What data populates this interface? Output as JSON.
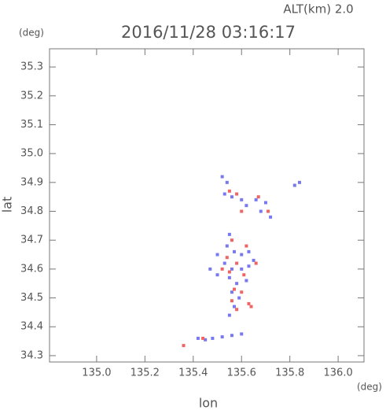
{
  "chart_data": {
    "type": "scatter",
    "title": "2016/11/28 03:16:17",
    "subtitle": "ALT(km) 2.0",
    "x_label": "lon",
    "y_label": "lat",
    "x_unit": "(deg)",
    "y_unit": "(deg)",
    "xlim": [
      134.805,
      136.107
    ],
    "ylim": [
      34.278,
      35.363
    ],
    "xticks": [
      {
        "value": 135,
        "label": "135.0"
      },
      135.2,
      135.4,
      135.6,
      135.8,
      {
        "value": 136,
        "label": "136.0"
      }
    ],
    "yticks": [
      34.3,
      34.4,
      34.5,
      34.6,
      34.7,
      34.8,
      34.9,
      {
        "value": 35,
        "label": "35.0"
      },
      35.1,
      35.2,
      35.3
    ],
    "series": [
      {
        "color": "#7878f0",
        "x": [
          135.52,
          135.54,
          135.53,
          135.56,
          135.6,
          135.62,
          135.66,
          135.7,
          135.68,
          135.72,
          135.82,
          135.84,
          135.55,
          135.54,
          135.57,
          135.6,
          135.63,
          135.5,
          135.53,
          135.56,
          135.6,
          135.63,
          135.55,
          135.58,
          135.62,
          135.56,
          135.59,
          135.57,
          135.55,
          135.42,
          135.45,
          135.48,
          135.52,
          135.56,
          135.6,
          135.47,
          135.5,
          135.65
        ],
        "values": [
          34.92,
          34.9,
          34.86,
          34.85,
          34.84,
          34.82,
          34.84,
          34.83,
          34.8,
          34.78,
          34.89,
          34.9,
          34.72,
          34.68,
          34.66,
          34.65,
          34.66,
          34.65,
          34.62,
          34.6,
          34.6,
          34.61,
          34.57,
          34.55,
          34.56,
          34.52,
          34.5,
          34.47,
          34.44,
          34.36,
          34.355,
          34.36,
          34.365,
          34.37,
          34.375,
          34.6,
          34.58,
          34.63
        ]
      },
      {
        "color": "#f06464",
        "x": [
          135.55,
          135.58,
          135.67,
          135.71,
          135.6,
          135.56,
          135.62,
          135.54,
          135.58,
          135.61,
          135.55,
          135.57,
          135.6,
          135.56,
          135.63,
          135.64,
          135.58,
          135.36,
          135.44,
          135.66,
          135.52
        ],
        "values": [
          34.87,
          34.86,
          34.85,
          34.8,
          34.8,
          34.7,
          34.68,
          34.64,
          34.62,
          34.58,
          34.59,
          34.53,
          34.52,
          34.49,
          34.48,
          34.47,
          34.46,
          34.335,
          34.36,
          34.62,
          34.6
        ]
      }
    ]
  }
}
